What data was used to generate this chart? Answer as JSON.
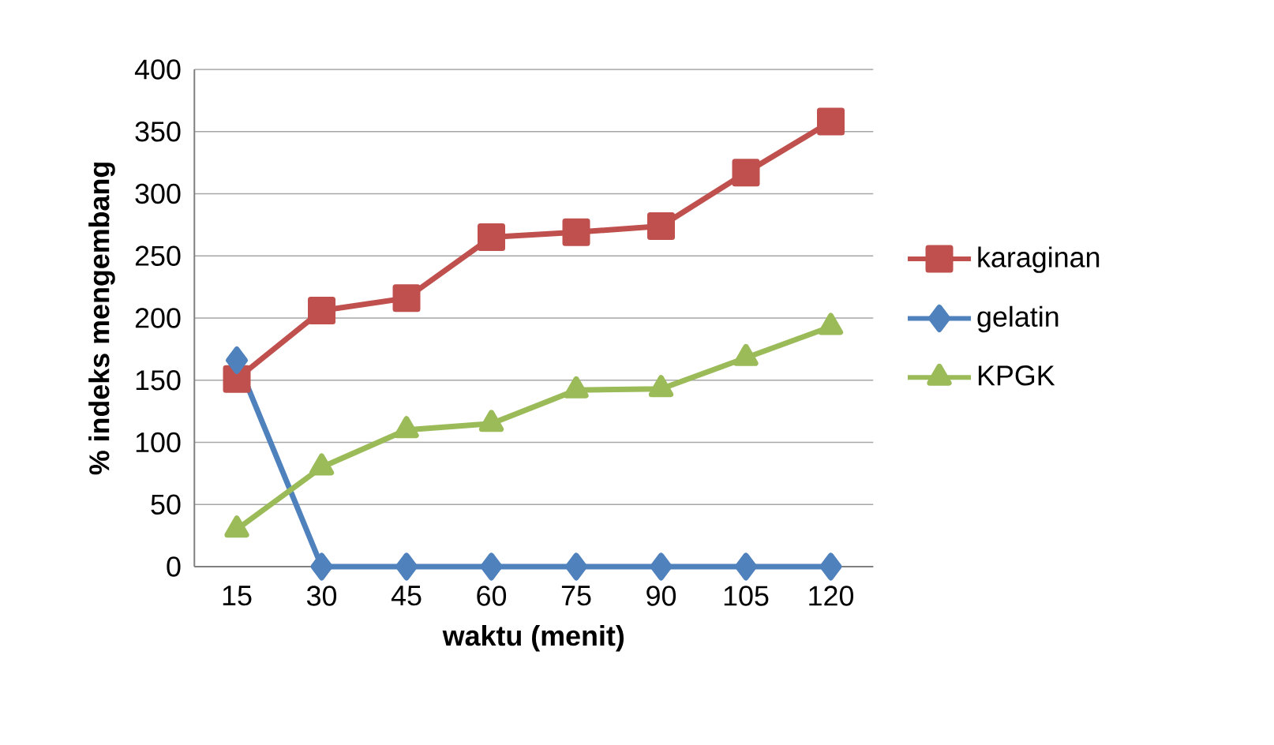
{
  "chart_data": {
    "type": "line",
    "xlabel": "waktu (menit)",
    "ylabel": "% indeks mengembang",
    "categories": [
      "15",
      "30",
      "45",
      "60",
      "75",
      "90",
      "105",
      "120"
    ],
    "series": [
      {
        "name": "karaginan",
        "color": "#c0504d",
        "marker": "square",
        "values": [
          151,
          206,
          216,
          265,
          269,
          274,
          317,
          358
        ]
      },
      {
        "name": "gelatin",
        "color": "#4f81bd",
        "marker": "diamond",
        "values": [
          166,
          0,
          0,
          0,
          0,
          0,
          0,
          0
        ]
      },
      {
        "name": "KPGK",
        "color": "#9bbb59",
        "marker": "triangle",
        "values": [
          30,
          80,
          110,
          115,
          142,
          143,
          168,
          193
        ]
      }
    ],
    "ylim": [
      0,
      400
    ],
    "yticks": [
      0,
      50,
      100,
      150,
      200,
      250,
      300,
      350,
      400
    ],
    "grid": "y",
    "legend": "right"
  }
}
